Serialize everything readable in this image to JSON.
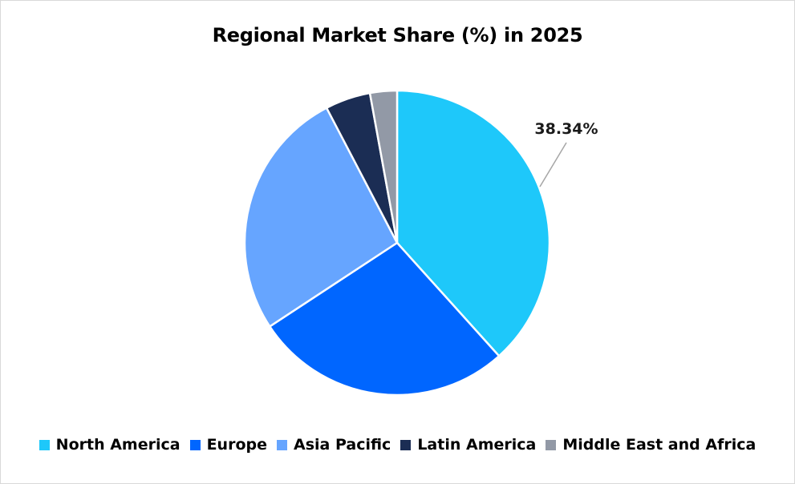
{
  "chart_data": {
    "type": "pie",
    "title": "Regional Market Share (%) in 2025",
    "categories": [
      "North America",
      "Europe",
      "Asia Pacific",
      "Latin America",
      "Middle East and Africa"
    ],
    "values": [
      38.34,
      27.4,
      26.6,
      4.8,
      2.86
    ],
    "colors": [
      "#1ec8fa",
      "#0066ff",
      "#66a5ff",
      "#1b2d54",
      "#9299a6"
    ],
    "data_labels": [
      {
        "category": "North America",
        "text": "38.34%"
      }
    ],
    "legend_position": "bottom",
    "start_angle_deg": 0,
    "direction": "clockwise"
  },
  "title": "Regional Market Share (%) in 2025",
  "legend": [
    {
      "label": "North America",
      "color": "#1ec8fa"
    },
    {
      "label": "Europe",
      "color": "#0066ff"
    },
    {
      "label": "Asia Pacific",
      "color": "#66a5ff"
    },
    {
      "label": "Latin America",
      "color": "#1b2d54"
    },
    {
      "label": "Middle East and Africa",
      "color": "#9299a6"
    }
  ],
  "data_label_text": "38.34%"
}
